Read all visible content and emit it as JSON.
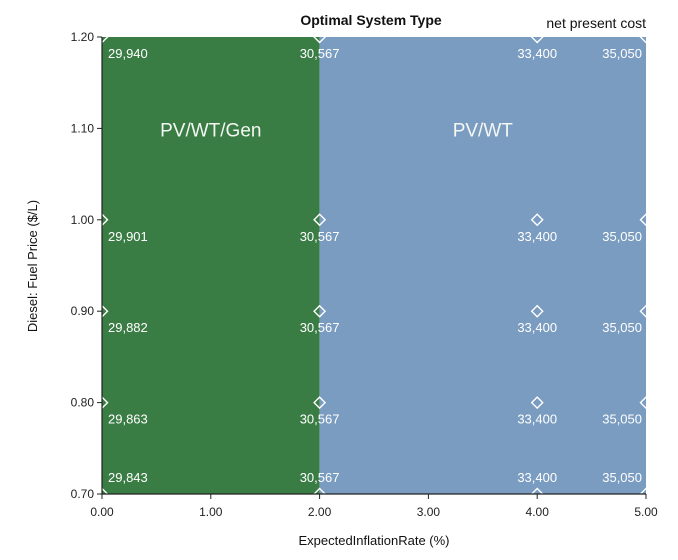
{
  "chart_data": {
    "type": "heatmap",
    "title": "Optimal System Type",
    "legend_title": "net present cost",
    "xlabel": "ExpectedInflationRate (%)",
    "ylabel": "Diesel: Fuel Price ($/L)",
    "xlim": [
      0,
      5
    ],
    "ylim": [
      0.7,
      1.2
    ],
    "x_ticks": [
      "0.00",
      "1.00",
      "2.00",
      "3.00",
      "4.00",
      "5.00"
    ],
    "y_ticks": [
      "0.70",
      "0.80",
      "0.90",
      "1.00",
      "1.10",
      "1.20"
    ],
    "regions": [
      {
        "label": "PV/WT/Gen",
        "x_range": [
          0,
          2
        ],
        "color": "#3a7d44"
      },
      {
        "label": "PV/WT",
        "x_range": [
          2,
          5
        ],
        "color": "#7a9cc0"
      }
    ],
    "points": [
      {
        "x": 0,
        "y": 1.2,
        "label": "29,940"
      },
      {
        "x": 2,
        "y": 1.2,
        "label": "30,567"
      },
      {
        "x": 4,
        "y": 1.2,
        "label": "33,400"
      },
      {
        "x": 5,
        "y": 1.2,
        "label": "35,050"
      },
      {
        "x": 0,
        "y": 1.0,
        "label": "29,901"
      },
      {
        "x": 2,
        "y": 1.0,
        "label": "30,567"
      },
      {
        "x": 4,
        "y": 1.0,
        "label": "33,400"
      },
      {
        "x": 5,
        "y": 1.0,
        "label": "35,050"
      },
      {
        "x": 0,
        "y": 0.9,
        "label": "29,882"
      },
      {
        "x": 2,
        "y": 0.9,
        "label": "30,567"
      },
      {
        "x": 4,
        "y": 0.9,
        "label": "33,400"
      },
      {
        "x": 5,
        "y": 0.9,
        "label": "35,050"
      },
      {
        "x": 0,
        "y": 0.8,
        "label": "29,863"
      },
      {
        "x": 2,
        "y": 0.8,
        "label": "30,567"
      },
      {
        "x": 4,
        "y": 0.8,
        "label": "33,400"
      },
      {
        "x": 5,
        "y": 0.8,
        "label": "35,050"
      },
      {
        "x": 0,
        "y": 0.7,
        "label": "29,843"
      },
      {
        "x": 2,
        "y": 0.7,
        "label": "30,567"
      },
      {
        "x": 4,
        "y": 0.7,
        "label": "33,400"
      },
      {
        "x": 5,
        "y": 0.7,
        "label": "35,050"
      }
    ],
    "grid": false
  }
}
